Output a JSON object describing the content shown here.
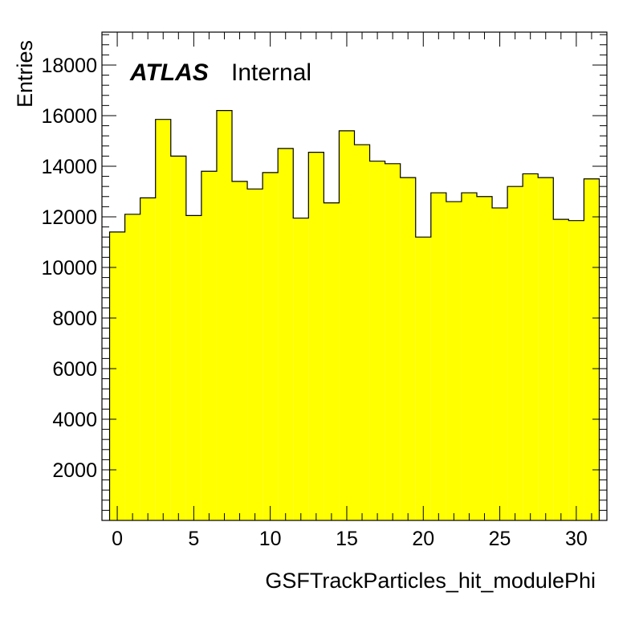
{
  "chart_data": {
    "type": "histogram",
    "title": "",
    "xlabel": "GSFTrackParticles_hit_modulePhi",
    "ylabel": "Entries",
    "label_bold": "ATLAS",
    "label_text": "Internal",
    "fill_color": "#ffff00",
    "line_color": "#000000",
    "xlim": [
      -1,
      32
    ],
    "ylim": [
      0,
      19300
    ],
    "bin_edges_start": -0.5,
    "bin_width": 1,
    "xticks": [
      "0",
      "5",
      "10",
      "15",
      "20",
      "25",
      "30"
    ],
    "xtick_values": [
      0,
      5,
      10,
      15,
      20,
      25,
      30
    ],
    "yticks": [
      "2000",
      "4000",
      "6000",
      "8000",
      "10000",
      "12000",
      "14000",
      "16000",
      "18000"
    ],
    "ytick_values": [
      2000,
      4000,
      6000,
      8000,
      10000,
      12000,
      14000,
      16000,
      18000
    ],
    "x": [
      0,
      1,
      2,
      3,
      4,
      5,
      6,
      7,
      8,
      9,
      10,
      11,
      12,
      13,
      14,
      15,
      16,
      17,
      18,
      19,
      20,
      21,
      22,
      23,
      24,
      25,
      26,
      27,
      28,
      29,
      30,
      31
    ],
    "values": [
      11400,
      12100,
      12750,
      15850,
      14400,
      12050,
      13800,
      16200,
      13400,
      13100,
      13750,
      14700,
      11950,
      14550,
      12550,
      15400,
      14850,
      14200,
      14100,
      13550,
      11200,
      12950,
      12600,
      12950,
      12800,
      12350,
      13200,
      13700,
      13550,
      11900,
      11850,
      13500
    ],
    "grid": false,
    "legend": "none"
  }
}
